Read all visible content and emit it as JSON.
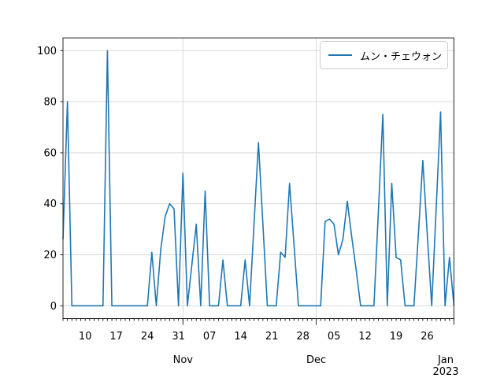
{
  "chart_data": {
    "type": "line",
    "title": "",
    "legend_label": "ムン・チェウォン",
    "legend_position": "upper right",
    "grid": true,
    "x_frequency": "daily",
    "x_range": [
      "2022-10-05",
      "2023-01-01"
    ],
    "ylim": [
      -5,
      105
    ],
    "yticks": [
      0,
      20,
      40,
      60,
      80,
      100
    ],
    "week_ticks": [
      {
        "offset": 5,
        "label": "10"
      },
      {
        "offset": 12,
        "label": "17"
      },
      {
        "offset": 19,
        "label": "24"
      },
      {
        "offset": 26,
        "label": "31"
      },
      {
        "offset": 33,
        "label": "07"
      },
      {
        "offset": 40,
        "label": "14"
      },
      {
        "offset": 47,
        "label": "21"
      },
      {
        "offset": 54,
        "label": "28"
      },
      {
        "offset": 61,
        "label": "05"
      },
      {
        "offset": 68,
        "label": "12"
      },
      {
        "offset": 75,
        "label": "19"
      },
      {
        "offset": 82,
        "label": "26"
      }
    ],
    "month_ticks": [
      {
        "offset": 27,
        "label": "Nov",
        "year": ""
      },
      {
        "offset": 57,
        "label": "Dec",
        "year": ""
      },
      {
        "offset": 88,
        "label": "Jan",
        "year": "2023"
      }
    ],
    "series": [
      {
        "name": "ムン・チェウォン",
        "color": "#1f77b4",
        "dates": [
          "2022-10-05",
          "2022-10-06",
          "2022-10-07",
          "2022-10-08",
          "2022-10-09",
          "2022-10-10",
          "2022-10-11",
          "2022-10-12",
          "2022-10-13",
          "2022-10-14",
          "2022-10-15",
          "2022-10-16",
          "2022-10-17",
          "2022-10-18",
          "2022-10-19",
          "2022-10-20",
          "2022-10-21",
          "2022-10-22",
          "2022-10-23",
          "2022-10-24",
          "2022-10-25",
          "2022-10-26",
          "2022-10-27",
          "2022-10-28",
          "2022-10-29",
          "2022-10-30",
          "2022-10-31",
          "2022-11-01",
          "2022-11-02",
          "2022-11-03",
          "2022-11-04",
          "2022-11-05",
          "2022-11-06",
          "2022-11-07",
          "2022-11-08",
          "2022-11-09",
          "2022-11-10",
          "2022-11-11",
          "2022-11-12",
          "2022-11-13",
          "2022-11-14",
          "2022-11-15",
          "2022-11-16",
          "2022-11-17",
          "2022-11-18",
          "2022-11-19",
          "2022-11-20",
          "2022-11-21",
          "2022-11-22",
          "2022-11-23",
          "2022-11-24",
          "2022-11-25",
          "2022-11-26",
          "2022-11-27",
          "2022-11-28",
          "2022-11-29",
          "2022-11-30",
          "2022-12-01",
          "2022-12-02",
          "2022-12-03",
          "2022-12-04",
          "2022-12-05",
          "2022-12-06",
          "2022-12-07",
          "2022-12-08",
          "2022-12-09",
          "2022-12-10",
          "2022-12-11",
          "2022-12-12",
          "2022-12-13",
          "2022-12-14",
          "2022-12-15",
          "2022-12-16",
          "2022-12-17",
          "2022-12-18",
          "2022-12-19",
          "2022-12-20",
          "2022-12-21",
          "2022-12-22",
          "2022-12-23",
          "2022-12-24",
          "2022-12-25",
          "2022-12-26",
          "2022-12-27",
          "2022-12-28",
          "2022-12-29",
          "2022-12-30",
          "2022-12-31",
          "2023-01-01"
        ],
        "values": [
          26,
          80,
          0,
          0,
          0,
          0,
          0,
          0,
          0,
          0,
          100,
          0,
          0,
          0,
          0,
          0,
          0,
          0,
          0,
          0,
          21,
          0,
          22,
          35,
          40,
          38,
          0,
          52,
          0,
          16,
          32,
          0,
          45,
          0,
          0,
          0,
          18,
          0,
          0,
          0,
          0,
          18,
          0,
          32,
          64,
          32,
          0,
          0,
          0,
          21,
          19,
          48,
          24,
          0,
          0,
          0,
          0,
          0,
          0,
          33,
          34,
          32,
          20,
          26,
          41,
          27,
          14,
          0,
          0,
          0,
          0,
          37,
          75,
          0,
          48,
          19,
          18,
          0,
          0,
          0,
          28,
          57,
          28,
          0,
          38,
          76,
          0,
          19,
          0
        ]
      }
    ],
    "colors": {
      "line": "#1f77b4",
      "grid": "#d9d9d9",
      "spine": "#262626",
      "tick": "#262626",
      "text": "#000000",
      "background": "#ffffff"
    }
  }
}
